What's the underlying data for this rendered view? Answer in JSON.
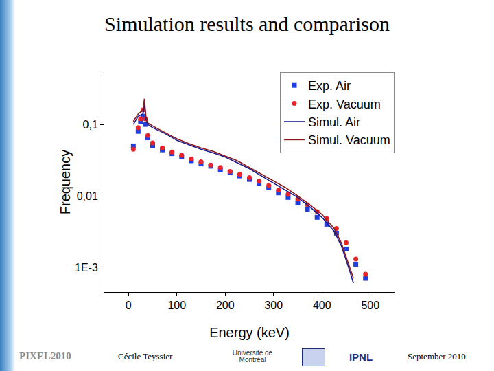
{
  "slide": {
    "title": "Simulation results and comparison",
    "footer": {
      "conference": "PIXEL2010",
      "author": "Cécile Teyssier",
      "date": "September 2010",
      "logos": [
        "Université de Montréal",
        "IPNL"
      ]
    }
  },
  "chart_data": {
    "type": "scatter",
    "x_label": "Energy (keV)",
    "y_label": "Frequency",
    "log": "y",
    "grid": false,
    "legend": "top-right",
    "xlim": [
      -50,
      550
    ],
    "xticks": [
      0,
      100,
      200,
      300,
      400,
      500
    ],
    "ylim": [
      0.00045,
      0.54
    ],
    "yticks": [
      {
        "value": 0.001,
        "label": "1E-3"
      },
      {
        "value": 0.01,
        "label": "0,01"
      },
      {
        "value": 0.1,
        "label": "0,1"
      }
    ],
    "series": [
      {
        "name": "Exp. Air",
        "type": "scatter",
        "marker": "square",
        "color": "#1f3fe0",
        "x": [
          10,
          20,
          25,
          30,
          35,
          40,
          50,
          70,
          90,
          110,
          130,
          150,
          170,
          190,
          210,
          230,
          250,
          270,
          290,
          310,
          330,
          350,
          370,
          390,
          410,
          430,
          450,
          470,
          490
        ],
        "values": [
          0.05,
          0.08,
          0.11,
          0.13,
          0.1,
          0.065,
          0.05,
          0.044,
          0.039,
          0.035,
          0.031,
          0.028,
          0.026,
          0.023,
          0.021,
          0.019,
          0.017,
          0.015,
          0.013,
          0.011,
          0.0095,
          0.008,
          0.0065,
          0.005,
          0.004,
          0.003,
          0.0018,
          0.0011,
          0.0007
        ]
      },
      {
        "name": "Exp. Vacuum",
        "type": "scatter",
        "marker": "circle",
        "color": "#e8242a",
        "x": [
          10,
          20,
          25,
          30,
          35,
          40,
          50,
          70,
          90,
          110,
          130,
          150,
          170,
          190,
          210,
          230,
          250,
          270,
          290,
          310,
          330,
          350,
          370,
          390,
          410,
          430,
          450,
          470,
          490
        ],
        "values": [
          0.045,
          0.09,
          0.12,
          0.16,
          0.12,
          0.07,
          0.055,
          0.047,
          0.041,
          0.037,
          0.033,
          0.03,
          0.027,
          0.025,
          0.022,
          0.02,
          0.018,
          0.016,
          0.014,
          0.012,
          0.0105,
          0.009,
          0.0075,
          0.006,
          0.0048,
          0.0035,
          0.0022,
          0.0013,
          0.0008
        ]
      },
      {
        "name": "Simul. Air",
        "type": "line",
        "line_style": "solid",
        "color": "#1a1a8c",
        "x": [
          10,
          20,
          30,
          33,
          36,
          40,
          50,
          75,
          100,
          125,
          150,
          175,
          200,
          225,
          250,
          275,
          300,
          325,
          350,
          375,
          400,
          425,
          440,
          455,
          465
        ],
        "values": [
          0.1,
          0.13,
          0.14,
          0.2,
          0.12,
          0.1,
          0.09,
          0.075,
          0.06,
          0.052,
          0.045,
          0.04,
          0.035,
          0.029,
          0.024,
          0.019,
          0.015,
          0.012,
          0.0095,
          0.007,
          0.005,
          0.0032,
          0.002,
          0.001,
          0.0006
        ]
      },
      {
        "name": "Simul. Vacuum",
        "type": "line",
        "line_style": "solid",
        "color": "#8b1a1a",
        "x": [
          10,
          20,
          30,
          33,
          36,
          40,
          50,
          75,
          100,
          125,
          150,
          175,
          200,
          225,
          250,
          275,
          300,
          325,
          350,
          375,
          400,
          425,
          440,
          455,
          465
        ],
        "values": [
          0.11,
          0.14,
          0.16,
          0.23,
          0.13,
          0.105,
          0.095,
          0.078,
          0.063,
          0.054,
          0.047,
          0.042,
          0.036,
          0.031,
          0.025,
          0.02,
          0.016,
          0.013,
          0.01,
          0.0075,
          0.0055,
          0.0035,
          0.0022,
          0.0011,
          0.0007
        ]
      }
    ]
  }
}
